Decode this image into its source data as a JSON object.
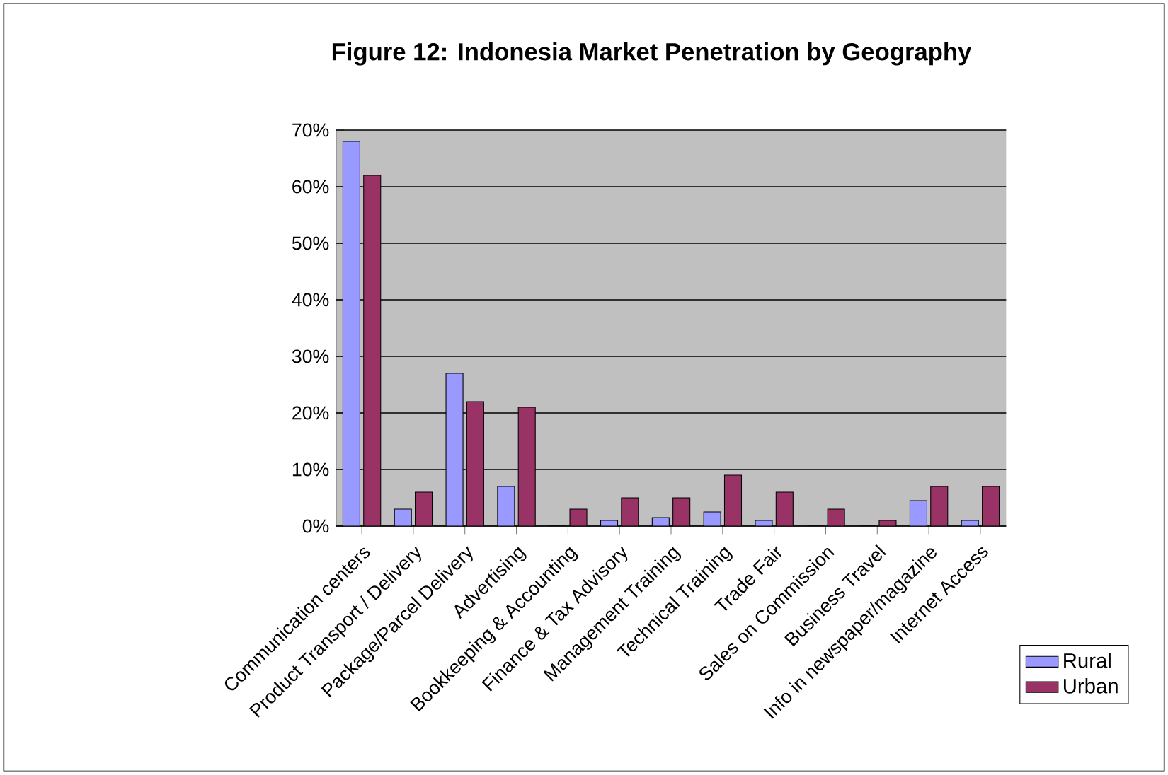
{
  "chart_data": {
    "type": "bar",
    "title": "Figure 12:  Indonesia Market Penetration by Geography",
    "categories": [
      "Communication centers",
      "Product Transport / Delivery",
      "Package/Parcel Delivery",
      "Advertising",
      "Bookkeeping & Accounting",
      "Finance & Tax Advisory",
      "Management Training",
      "Technical Training",
      "Trade Fair",
      "Sales on Commission",
      "Business Travel",
      "Info in newspaper/magazine",
      "Internet Access"
    ],
    "series": [
      {
        "name": "Rural",
        "color": "#9999ff",
        "values": [
          68,
          3,
          27,
          7,
          0,
          1,
          1.5,
          2.5,
          1,
          0,
          0,
          4.5,
          1
        ]
      },
      {
        "name": "Urban",
        "color": "#993366",
        "values": [
          62,
          6,
          22,
          21,
          3,
          5,
          5,
          9,
          6,
          3,
          1,
          7,
          7
        ]
      }
    ],
    "ylim": [
      0,
      70
    ],
    "yticks": [
      {
        "value": 0,
        "label": "0%"
      },
      {
        "value": 10,
        "label": "10%"
      },
      {
        "value": 20,
        "label": "20%"
      },
      {
        "value": 30,
        "label": "30%"
      },
      {
        "value": 40,
        "label": "40%"
      },
      {
        "value": 50,
        "label": "50%"
      },
      {
        "value": 60,
        "label": "60%"
      },
      {
        "value": 70,
        "label": "70%"
      }
    ],
    "grid": "y",
    "legend": "bottom right"
  }
}
